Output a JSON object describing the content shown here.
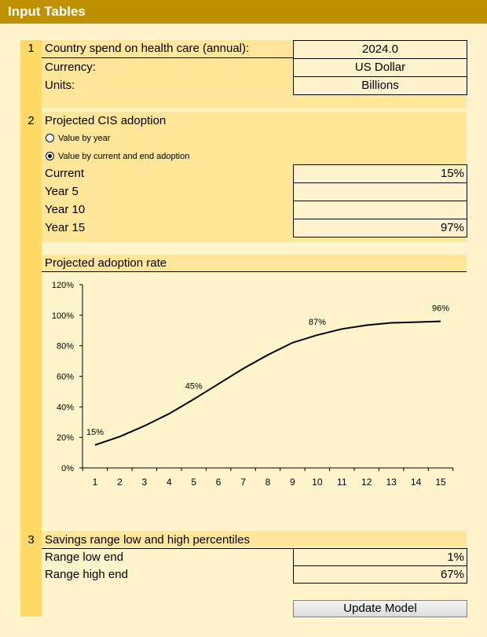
{
  "header": {
    "title": "Input Tables"
  },
  "section1": {
    "number": "1",
    "rows": [
      {
        "label": "Country spend on health care (annual):",
        "value": "2024.0"
      },
      {
        "label": "Currency:",
        "value": "US Dollar"
      },
      {
        "label": "Units:",
        "value": "Billions"
      }
    ]
  },
  "section2": {
    "number": "2",
    "title": "Projected CIS adoption",
    "radios": [
      {
        "label": "Value by year",
        "selected": false
      },
      {
        "label": "Value by current and end adoption",
        "selected": true
      }
    ],
    "rows": [
      {
        "label": "Current",
        "value": "15%"
      },
      {
        "label": "Year 5",
        "value": ""
      },
      {
        "label": "Year 10",
        "value": ""
      },
      {
        "label": "Year 15",
        "value": "97%"
      }
    ]
  },
  "chart_section": {
    "title": "Projected adoption rate"
  },
  "chart_data": {
    "type": "line",
    "x": [
      1,
      2,
      3,
      4,
      5,
      6,
      7,
      8,
      9,
      10,
      11,
      12,
      13,
      14,
      15
    ],
    "series": [
      {
        "values": [
          15,
          20.5,
          27.5,
          35.5,
          45,
          55,
          65,
          74,
          82,
          87,
          91,
          93.5,
          95,
          95.5,
          96
        ]
      }
    ],
    "data_labels": [
      {
        "x": 1,
        "text": "15%"
      },
      {
        "x": 5,
        "text": "45%"
      },
      {
        "x": 10,
        "text": "87%"
      },
      {
        "x": 15,
        "text": "96%"
      }
    ],
    "yticks": [
      "0%",
      "20%",
      "40%",
      "60%",
      "80%",
      "100%",
      "120%"
    ],
    "ytick_values": [
      0,
      20,
      40,
      60,
      80,
      100,
      120
    ],
    "xticks": [
      "1",
      "2",
      "3",
      "4",
      "5",
      "6",
      "7",
      "8",
      "9",
      "10",
      "11",
      "12",
      "13",
      "14",
      "15"
    ],
    "ylim": [
      0,
      120
    ],
    "xlim": [
      1,
      15
    ],
    "grid": false,
    "legend": "none",
    "line_color": "#000000"
  },
  "section3": {
    "number": "3",
    "title": "Savings range low and high percentiles",
    "rows": [
      {
        "label": "Range low end",
        "value": "1%"
      },
      {
        "label": "Range high end",
        "value": "67%"
      }
    ]
  },
  "actions": {
    "update_label": "Update Model"
  },
  "colors": {
    "title_bar": "#bf9000",
    "band": "#ffe699",
    "number_column": "#ffd966",
    "background": "#fff4cc"
  }
}
